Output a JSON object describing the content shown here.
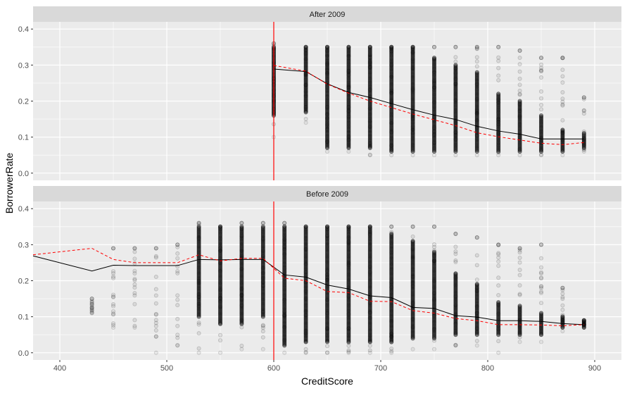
{
  "chart_data": {
    "type": "scatter",
    "xlabel": "CreditScore",
    "ylabel": "BorrowerRate",
    "xlim": [
      375,
      925
    ],
    "ylim": [
      -0.02,
      0.42
    ],
    "x_ticks": [
      400,
      500,
      600,
      700,
      800,
      900
    ],
    "y_ticks": [
      0.0,
      0.1,
      0.2,
      0.3,
      0.4
    ],
    "x_tick_labels": [
      "400",
      "500",
      "600",
      "700",
      "800",
      "900"
    ],
    "y_tick_labels": [
      "0.0",
      "0.1",
      "0.2",
      "0.3",
      "0.4"
    ],
    "vline": 600,
    "colors": {
      "panel_bg": "#ebebeb",
      "strip_bg": "#d9d9d9",
      "grid": "#ffffff",
      "points": "#000000",
      "mean_line": "#000000",
      "median_line": "#ff0000",
      "vline": "#ff0000"
    },
    "facets": [
      {
        "strip": "After 2009",
        "points": [
          {
            "x": 600,
            "ymin": 0.1,
            "ymax": 0.36,
            "dense": [
              0.16,
              0.35
            ]
          },
          {
            "x": 630,
            "ymin": 0.14,
            "ymax": 0.35,
            "dense": [
              0.17,
              0.35
            ]
          },
          {
            "x": 650,
            "ymin": 0.06,
            "ymax": 0.35,
            "dense": [
              0.07,
              0.35
            ]
          },
          {
            "x": 670,
            "ymin": 0.06,
            "ymax": 0.35,
            "dense": [
              0.07,
              0.35
            ]
          },
          {
            "x": 690,
            "ymin": 0.05,
            "ymax": 0.35,
            "dense": [
              0.07,
              0.35
            ]
          },
          {
            "x": 710,
            "ymin": 0.05,
            "ymax": 0.35,
            "dense": [
              0.06,
              0.35
            ]
          },
          {
            "x": 730,
            "ymin": 0.05,
            "ymax": 0.35,
            "dense": [
              0.06,
              0.35
            ]
          },
          {
            "x": 750,
            "ymin": 0.05,
            "ymax": 0.35,
            "dense": [
              0.06,
              0.32
            ]
          },
          {
            "x": 770,
            "ymin": 0.05,
            "ymax": 0.35,
            "dense": [
              0.06,
              0.3
            ]
          },
          {
            "x": 790,
            "ymin": 0.05,
            "ymax": 0.35,
            "dense": [
              0.06,
              0.28
            ]
          },
          {
            "x": 810,
            "ymin": 0.05,
            "ymax": 0.35,
            "dense": [
              0.06,
              0.22
            ]
          },
          {
            "x": 830,
            "ymin": 0.05,
            "ymax": 0.34,
            "dense": [
              0.06,
              0.2
            ]
          },
          {
            "x": 850,
            "ymin": 0.05,
            "ymax": 0.32,
            "dense": [
              0.06,
              0.16
            ]
          },
          {
            "x": 870,
            "ymin": 0.05,
            "ymax": 0.32,
            "dense": [
              0.06,
              0.12
            ]
          },
          {
            "x": 890,
            "ymin": 0.06,
            "ymax": 0.21,
            "dense": [
              0.07,
              0.11
            ]
          }
        ],
        "mean_line": {
          "x": [
            600,
            630,
            650,
            670,
            690,
            710,
            730,
            750,
            770,
            790,
            810,
            830,
            850,
            870,
            890
          ],
          "y": [
            0.289,
            0.282,
            0.248,
            0.224,
            0.21,
            0.193,
            0.176,
            0.161,
            0.149,
            0.13,
            0.117,
            0.108,
            0.095,
            0.095,
            0.095
          ]
        },
        "median_line": {
          "x": [
            600,
            630,
            650,
            670,
            690,
            710,
            730,
            750,
            770,
            790,
            810,
            830,
            850,
            870,
            890
          ],
          "y": [
            0.299,
            0.283,
            0.247,
            0.222,
            0.2,
            0.182,
            0.164,
            0.148,
            0.132,
            0.112,
            0.101,
            0.092,
            0.083,
            0.079,
            0.085
          ]
        }
      },
      {
        "strip": "Before 2009",
        "points": [
          {
            "x": 430,
            "ymin": 0.11,
            "ymax": 0.15,
            "dense": [
              0.0,
              0.0
            ]
          },
          {
            "x": 450,
            "ymin": 0.07,
            "ymax": 0.29,
            "dense": [
              0.0,
              0.0
            ]
          },
          {
            "x": 470,
            "ymin": 0.07,
            "ymax": 0.29,
            "dense": [
              0.0,
              0.0
            ]
          },
          {
            "x": 490,
            "ymin": 0.0,
            "ymax": 0.29,
            "dense": [
              0.0,
              0.0
            ]
          },
          {
            "x": 510,
            "ymin": 0.02,
            "ymax": 0.3,
            "dense": [
              0.0,
              0.0
            ]
          },
          {
            "x": 530,
            "ymin": 0.0,
            "ymax": 0.36,
            "dense": [
              0.1,
              0.35
            ]
          },
          {
            "x": 550,
            "ymin": 0.0,
            "ymax": 0.35,
            "dense": [
              0.08,
              0.35
            ]
          },
          {
            "x": 570,
            "ymin": 0.01,
            "ymax": 0.36,
            "dense": [
              0.08,
              0.35
            ]
          },
          {
            "x": 590,
            "ymin": 0.01,
            "ymax": 0.36,
            "dense": [
              0.1,
              0.35
            ]
          },
          {
            "x": 610,
            "ymin": 0.0,
            "ymax": 0.36,
            "dense": [
              0.02,
              0.35
            ]
          },
          {
            "x": 630,
            "ymin": 0.0,
            "ymax": 0.35,
            "dense": [
              0.03,
              0.35
            ]
          },
          {
            "x": 650,
            "ymin": 0.0,
            "ymax": 0.35,
            "dense": [
              0.03,
              0.35
            ]
          },
          {
            "x": 670,
            "ymin": 0.0,
            "ymax": 0.35,
            "dense": [
              0.03,
              0.35
            ]
          },
          {
            "x": 690,
            "ymin": 0.0,
            "ymax": 0.35,
            "dense": [
              0.03,
              0.35
            ]
          },
          {
            "x": 710,
            "ymin": 0.0,
            "ymax": 0.35,
            "dense": [
              0.03,
              0.33
            ]
          },
          {
            "x": 730,
            "ymin": 0.01,
            "ymax": 0.35,
            "dense": [
              0.04,
              0.31
            ]
          },
          {
            "x": 750,
            "ymin": 0.01,
            "ymax": 0.35,
            "dense": [
              0.04,
              0.28
            ]
          },
          {
            "x": 770,
            "ymin": 0.02,
            "ymax": 0.33,
            "dense": [
              0.05,
              0.22
            ]
          },
          {
            "x": 790,
            "ymin": 0.02,
            "ymax": 0.32,
            "dense": [
              0.05,
              0.19
            ]
          },
          {
            "x": 810,
            "ymin": 0.0,
            "ymax": 0.3,
            "dense": [
              0.05,
              0.14
            ]
          },
          {
            "x": 830,
            "ymin": 0.03,
            "ymax": 0.29,
            "dense": [
              0.05,
              0.13
            ]
          },
          {
            "x": 850,
            "ymin": 0.03,
            "ymax": 0.3,
            "dense": [
              0.05,
              0.11
            ]
          },
          {
            "x": 870,
            "ymin": 0.06,
            "ymax": 0.18,
            "dense": [
              0.07,
              0.1
            ]
          },
          {
            "x": 890,
            "ymin": 0.07,
            "ymax": 0.09,
            "dense": [
              0.07,
              0.09
            ]
          }
        ],
        "mean_line": {
          "x": [
            375,
            430,
            450,
            470,
            490,
            510,
            530,
            550,
            570,
            590,
            610,
            630,
            650,
            670,
            690,
            710,
            730,
            750,
            770,
            790,
            810,
            830,
            850,
            870,
            890
          ],
          "y": [
            0.269,
            0.227,
            0.243,
            0.242,
            0.242,
            0.242,
            0.259,
            0.258,
            0.259,
            0.259,
            0.216,
            0.21,
            0.188,
            0.177,
            0.158,
            0.153,
            0.126,
            0.123,
            0.103,
            0.099,
            0.089,
            0.089,
            0.087,
            0.081,
            0.078
          ]
        },
        "median_line": {
          "x": [
            375,
            430,
            450,
            470,
            490,
            510,
            530,
            550,
            570,
            590,
            610,
            630,
            650,
            670,
            690,
            710,
            730,
            750,
            770,
            790,
            810,
            830,
            850,
            870,
            890
          ],
          "y": [
            0.272,
            0.29,
            0.259,
            0.25,
            0.25,
            0.25,
            0.272,
            0.255,
            0.262,
            0.262,
            0.207,
            0.2,
            0.17,
            0.167,
            0.143,
            0.142,
            0.117,
            0.11,
            0.095,
            0.089,
            0.078,
            0.078,
            0.077,
            0.075,
            0.078
          ]
        }
      }
    ]
  }
}
